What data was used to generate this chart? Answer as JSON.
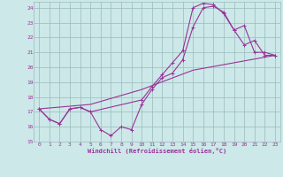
{
  "xlabel": "Windchill (Refroidissement éolien,°C)",
  "bg_color": "#cce8e8",
  "line_color": "#993399",
  "grid_color": "#99bbbb",
  "xlim": [
    -0.5,
    23.5
  ],
  "ylim": [
    15,
    24.4
  ],
  "yticks": [
    15,
    16,
    17,
    18,
    19,
    20,
    21,
    22,
    23,
    24
  ],
  "xticks": [
    0,
    1,
    2,
    3,
    4,
    5,
    6,
    7,
    8,
    9,
    10,
    11,
    12,
    13,
    14,
    15,
    16,
    17,
    18,
    19,
    20,
    21,
    22,
    23
  ],
  "s1_x": [
    0,
    1,
    2,
    3,
    4,
    5,
    6,
    7,
    8,
    9,
    10,
    11,
    12,
    13,
    14,
    15,
    16,
    17,
    18,
    19,
    20,
    21,
    22,
    23
  ],
  "s1_y": [
    17.2,
    16.5,
    16.2,
    17.2,
    17.3,
    17.0,
    15.8,
    15.4,
    16.0,
    15.8,
    17.5,
    18.5,
    19.3,
    19.6,
    20.5,
    22.7,
    24.0,
    24.1,
    23.7,
    22.5,
    22.8,
    21.0,
    21.0,
    20.8
  ],
  "s2_x": [
    0,
    1,
    2,
    3,
    4,
    5,
    10,
    11,
    12,
    13,
    14,
    15,
    16,
    17,
    18,
    19,
    20,
    21,
    22,
    23
  ],
  "s2_y": [
    17.2,
    16.5,
    16.2,
    17.2,
    17.3,
    17.0,
    17.8,
    18.7,
    19.5,
    20.3,
    21.1,
    24.0,
    24.3,
    24.2,
    23.6,
    22.5,
    21.5,
    21.8,
    20.8,
    20.8
  ],
  "s3_x": [
    0,
    5,
    10,
    15,
    23
  ],
  "s3_y": [
    17.2,
    17.5,
    18.5,
    19.8,
    20.8
  ]
}
